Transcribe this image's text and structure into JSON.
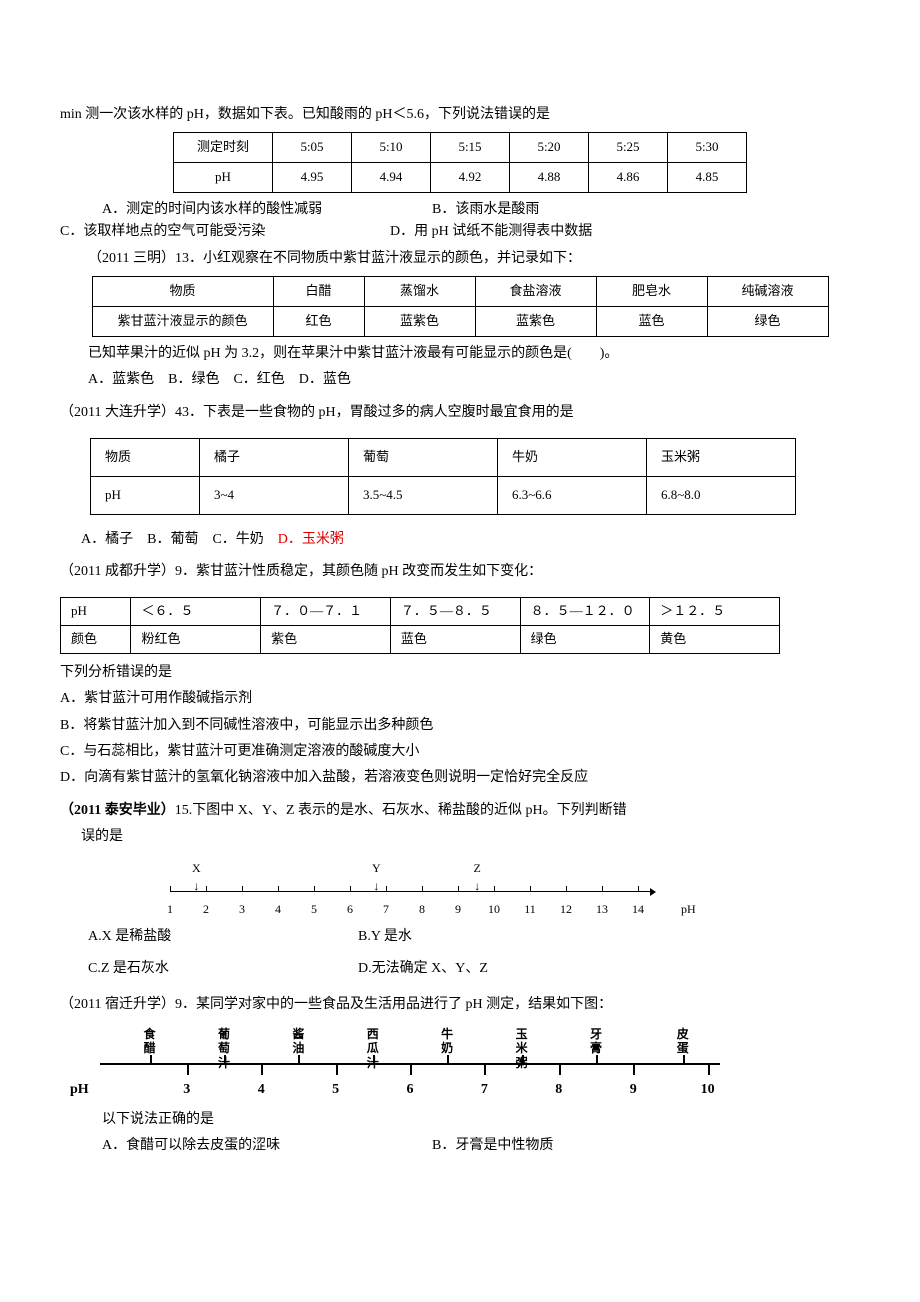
{
  "q1": {
    "intro": "min 测一次该水样的 pH，数据如下表。已知酸雨的 pH＜5.6，下列说法错误的是",
    "table": {
      "row1": [
        "测定时刻",
        "5:05",
        "5:10",
        "5:15",
        "5:20",
        "5:25",
        "5:30"
      ],
      "row2": [
        "pH",
        "4.95",
        "4.94",
        "4.92",
        "4.88",
        "4.86",
        "4.85"
      ]
    },
    "optA": "A．测定的时间内该水样的酸性减弱",
    "optB": "B．该雨水是酸雨",
    "optC": "C．该取样地点的空气可能受污染",
    "optD": "D．用 pH 试纸不能测得表中数据"
  },
  "q2": {
    "stem": "（2011 三明）13．小红观察在不同物质中紫甘蓝汁液显示的颜色，并记录如下：",
    "table": {
      "r1": [
        "物质",
        "白醋",
        "蒸馏水",
        "食盐溶液",
        "肥皂水",
        "纯碱溶液"
      ],
      "r2": [
        "紫甘蓝汁液显示的颜色",
        "红色",
        "蓝紫色",
        "蓝紫色",
        "蓝色",
        "绿色"
      ]
    },
    "line2": "已知苹果汁的近似 pH 为 3.2，则在苹果汁中紫甘蓝汁液最有可能显示的颜色是(　　)。",
    "opts": "A．蓝紫色　B．绿色　C．红色　D．蓝色"
  },
  "q3": {
    "stem": "（2011 大连升学）43．下表是一些食物的 pH，胃酸过多的病人空腹时最宜食用的是",
    "table": {
      "r1": [
        "物质",
        "橘子",
        "葡萄",
        "牛奶",
        "玉米粥"
      ],
      "r2": [
        "pH",
        "3~4",
        "3.5~4.5",
        "6.3~6.6",
        "6.8~8.0"
      ]
    },
    "optsPrefix": "A．橘子　B．葡萄　C．牛奶　",
    "optD": "D．玉米粥"
  },
  "q4": {
    "stem": "（2011 成都升学）9．紫甘蓝汁性质稳定，其颜色随 pH 改变而发生如下变化：",
    "table": {
      "r1": [
        "pH",
        "＜６．５",
        "７．０—７．１",
        "７．５—８．５",
        "８．５—１２．０",
        "＞１２．５"
      ],
      "r2": [
        "颜色",
        "粉红色",
        "紫色",
        "蓝色",
        "绿色",
        "黄色"
      ]
    },
    "lead": "下列分析错误的是",
    "A": "A．紫甘蓝汁可用作酸碱指示剂",
    "B": "B．将紫甘蓝汁加入到不同碱性溶液中，可能显示出多种颜色",
    "C": "C．与石蕊相比，紫甘蓝汁可更准确测定溶液的酸碱度大小",
    "D": "D．向滴有紫甘蓝汁的氢氧化钠溶液中加入盐酸，若溶液变色则说明一定恰好完全反应"
  },
  "q5": {
    "stem_a": "（2011 泰安毕业）",
    "stem_b": "15.下图中 X、Y、Z 表示的是水、石灰水、稀盐酸的近似 pH。下列判断错",
    "stem_c": "误的是",
    "xyz": {
      "labels": [
        {
          "t": "X",
          "p": 5.5
        },
        {
          "t": "Y",
          "p": 43
        },
        {
          "t": "Z",
          "p": 64
        }
      ],
      "ticks": [
        0,
        7.5,
        15,
        22.5,
        30,
        37.5,
        45,
        52.5,
        60,
        67.5,
        75,
        82.5,
        90,
        97.5
      ],
      "nums": [
        {
          "t": "1",
          "p": 0
        },
        {
          "t": "2",
          "p": 7.5
        },
        {
          "t": "3",
          "p": 15
        },
        {
          "t": "4",
          "p": 22.5
        },
        {
          "t": "5",
          "p": 30
        },
        {
          "t": "6",
          "p": 37.5
        },
        {
          "t": "7",
          "p": 45
        },
        {
          "t": "8",
          "p": 52.5
        },
        {
          "t": "9",
          "p": 60
        },
        {
          "t": "10",
          "p": 67.5
        },
        {
          "t": "11",
          "p": 75
        },
        {
          "t": "12",
          "p": 82.5
        },
        {
          "t": "13",
          "p": 90
        },
        {
          "t": "14",
          "p": 97.5
        },
        {
          "t": "pH",
          "p": 108
        }
      ]
    },
    "A": "A.X 是稀盐酸",
    "B": "B.Y 是水",
    "C": "C.Z 是石灰水",
    "D": "D.无法确定 X、Y、Z"
  },
  "q6": {
    "stem": "（2011 宿迁升学）9．某同学对家中的一些食品及生活用品进行了 pH 测定，结果如下图：",
    "chart": {
      "labels": [
        {
          "t": "食\\n醋",
          "p": 8
        },
        {
          "t": "葡\\n萄\\n汁",
          "p": 20
        },
        {
          "t": "酱\\n油",
          "p": 32
        },
        {
          "t": "西\\n瓜\\n汁",
          "p": 44
        },
        {
          "t": "牛\\n奶",
          "p": 56
        },
        {
          "t": "玉\\n米\\n粥",
          "p": 68
        },
        {
          "t": "牙\\n膏",
          "p": 80
        },
        {
          "t": "皮\\n蛋",
          "p": 94
        }
      ],
      "ticks_up": [
        8,
        20,
        32,
        44,
        56,
        68,
        80,
        94
      ],
      "ticks_down": [
        14,
        26,
        38,
        50,
        62,
        74,
        86,
        98
      ],
      "nums": [
        {
          "t": "3",
          "p": 14
        },
        {
          "t": "4",
          "p": 26
        },
        {
          "t": "5",
          "p": 38
        },
        {
          "t": "6",
          "p": 50
        },
        {
          "t": "7",
          "p": 62
        },
        {
          "t": "8",
          "p": 74
        },
        {
          "t": "9",
          "p": 86
        },
        {
          "t": "10",
          "p": 98
        }
      ],
      "phlabel": "pH"
    },
    "lead": "以下说法正确的是",
    "A": "A．食醋可以除去皮蛋的涩味",
    "B": "B．牙膏是中性物质"
  }
}
